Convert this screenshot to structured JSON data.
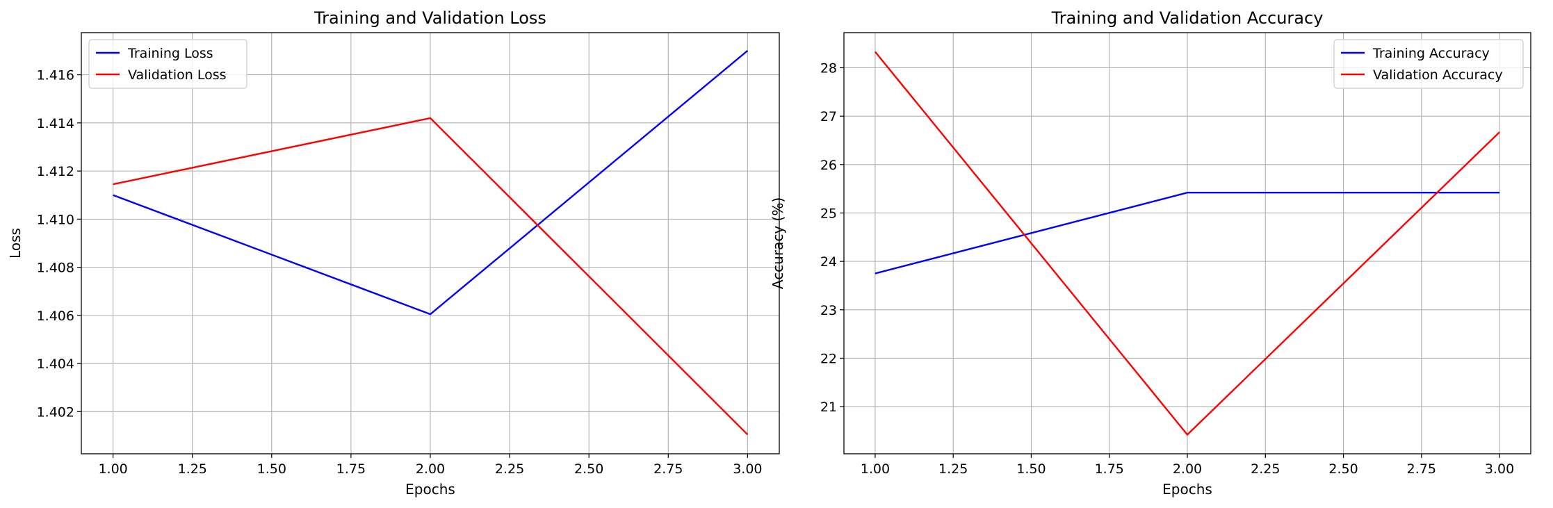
{
  "figure": {
    "line_colors": {
      "training": "#0000ff",
      "validation": "#ff0000"
    },
    "grid_color": "#b0b0b0",
    "frame_color": "#000000"
  },
  "chart_data": [
    {
      "type": "line",
      "title": "Training and Validation Loss",
      "xlabel": "Epochs",
      "ylabel": "Loss",
      "grid": true,
      "legend_position": "top-left",
      "xlim": [
        0.9,
        3.1
      ],
      "ylim": [
        1.40025,
        1.41775
      ],
      "x_ticks": [
        1.0,
        1.25,
        1.5,
        1.75,
        2.0,
        2.25,
        2.5,
        2.75,
        3.0
      ],
      "x_tick_labels": [
        "1.00",
        "1.25",
        "1.50",
        "1.75",
        "2.00",
        "2.25",
        "2.50",
        "2.75",
        "3.00"
      ],
      "y_ticks": [
        1.402,
        1.404,
        1.406,
        1.408,
        1.41,
        1.412,
        1.414,
        1.416
      ],
      "y_tick_labels": [
        "1.402",
        "1.404",
        "1.406",
        "1.408",
        "1.410",
        "1.412",
        "1.414",
        "1.416"
      ],
      "x": [
        1,
        2,
        3
      ],
      "series": [
        {
          "name": "Training Loss",
          "color": "#0000ff",
          "values": [
            1.411,
            1.40605,
            1.417
          ]
        },
        {
          "name": "Validation Loss",
          "color": "#ff0000",
          "values": [
            1.41145,
            1.4142,
            1.40105
          ]
        }
      ]
    },
    {
      "type": "line",
      "title": "Training and Validation Accuracy",
      "xlabel": "Epochs",
      "ylabel": "Accuracy (%)",
      "grid": true,
      "legend_position": "top-right",
      "xlim": [
        0.9,
        3.1
      ],
      "ylim": [
        20.025,
        28.725
      ],
      "x_ticks": [
        1.0,
        1.25,
        1.5,
        1.75,
        2.0,
        2.25,
        2.5,
        2.75,
        3.0
      ],
      "x_tick_labels": [
        "1.00",
        "1.25",
        "1.50",
        "1.75",
        "2.00",
        "2.25",
        "2.50",
        "2.75",
        "3.00"
      ],
      "y_ticks": [
        21,
        22,
        23,
        24,
        25,
        26,
        27,
        28
      ],
      "y_tick_labels": [
        "21",
        "22",
        "23",
        "24",
        "25",
        "26",
        "27",
        "28"
      ],
      "x": [
        1,
        2,
        3
      ],
      "series": [
        {
          "name": "Training Accuracy",
          "color": "#0000ff",
          "values": [
            23.75,
            25.42,
            25.42
          ]
        },
        {
          "name": "Validation Accuracy",
          "color": "#ff0000",
          "values": [
            28.33,
            20.42,
            26.67
          ]
        }
      ]
    }
  ]
}
